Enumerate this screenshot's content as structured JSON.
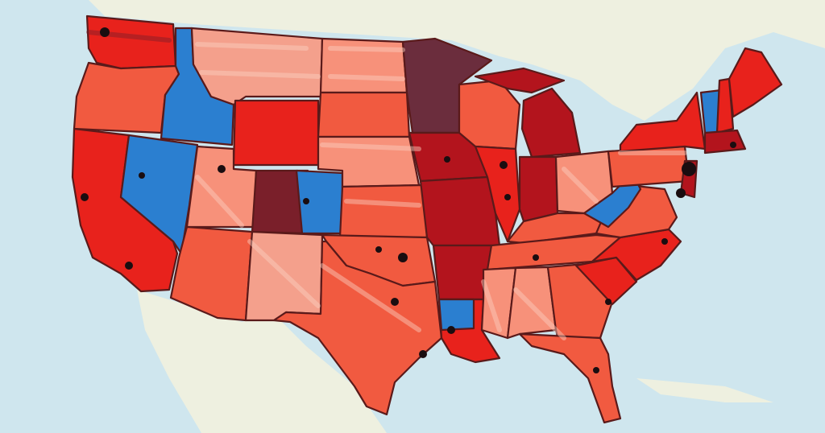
{
  "palette": {
    "ocean": "#cfe6ee",
    "ocean_light": "#e1eff3",
    "land_foreign": "#eef0e0",
    "red_bright": "#e8221c",
    "red_mid": "#f15a40",
    "red_light": "#f7917a",
    "salmon": "#f4a08c",
    "red_dark": "#b3141d",
    "maroon": "#7a1f2a",
    "plum": "#6b2d3d",
    "blue": "#2b7fd0",
    "outline": "#5a1a1a"
  },
  "states": [
    {
      "name": "washington",
      "fill": "red_bright"
    },
    {
      "name": "oregon",
      "fill": "red_mid"
    },
    {
      "name": "california",
      "fill": "red_bright"
    },
    {
      "name": "idaho",
      "fill": "blue"
    },
    {
      "name": "nevada",
      "fill": "blue"
    },
    {
      "name": "montana",
      "fill": "salmon"
    },
    {
      "name": "wyoming",
      "fill": "red_bright"
    },
    {
      "name": "utah",
      "fill": "red_light"
    },
    {
      "name": "colorado-west",
      "fill": "maroon"
    },
    {
      "name": "colorado-east",
      "fill": "blue"
    },
    {
      "name": "arizona",
      "fill": "red_mid"
    },
    {
      "name": "new-mexico",
      "fill": "salmon"
    },
    {
      "name": "north-dakota",
      "fill": "red_light"
    },
    {
      "name": "south-dakota",
      "fill": "red_mid"
    },
    {
      "name": "nebraska",
      "fill": "red_light"
    },
    {
      "name": "kansas",
      "fill": "red_mid"
    },
    {
      "name": "oklahoma",
      "fill": "red_mid"
    },
    {
      "name": "texas",
      "fill": "red_mid"
    },
    {
      "name": "minnesota",
      "fill": "plum"
    },
    {
      "name": "iowa",
      "fill": "red_dark"
    },
    {
      "name": "missouri",
      "fill": "red_dark"
    },
    {
      "name": "arkansas",
      "fill": "red_dark"
    },
    {
      "name": "louisiana",
      "fill": "red_bright"
    },
    {
      "name": "louisiana-north",
      "fill": "blue"
    },
    {
      "name": "wisconsin",
      "fill": "red_mid"
    },
    {
      "name": "illinois",
      "fill": "red_bright"
    },
    {
      "name": "michigan",
      "fill": "red_dark"
    },
    {
      "name": "michigan-upper",
      "fill": "red_dark"
    },
    {
      "name": "indiana",
      "fill": "red_dark"
    },
    {
      "name": "ohio",
      "fill": "red_light"
    },
    {
      "name": "kentucky",
      "fill": "red_mid"
    },
    {
      "name": "tennessee",
      "fill": "red_mid"
    },
    {
      "name": "mississippi",
      "fill": "red_light"
    },
    {
      "name": "alabama",
      "fill": "red_light"
    },
    {
      "name": "georgia",
      "fill": "red_mid"
    },
    {
      "name": "florida",
      "fill": "red_mid"
    },
    {
      "name": "south-carolina",
      "fill": "red_bright"
    },
    {
      "name": "north-carolina",
      "fill": "red_bright"
    },
    {
      "name": "virginia",
      "fill": "red_mid"
    },
    {
      "name": "west-virginia",
      "fill": "blue"
    },
    {
      "name": "pennsylvania",
      "fill": "red_mid"
    },
    {
      "name": "new-york",
      "fill": "red_bright"
    },
    {
      "name": "vermont",
      "fill": "blue"
    },
    {
      "name": "new-hampshire",
      "fill": "red_bright"
    },
    {
      "name": "maine",
      "fill": "red_bright"
    },
    {
      "name": "massachusetts",
      "fill": "red_dark"
    },
    {
      "name": "new-jersey",
      "fill": "red_dark"
    }
  ]
}
